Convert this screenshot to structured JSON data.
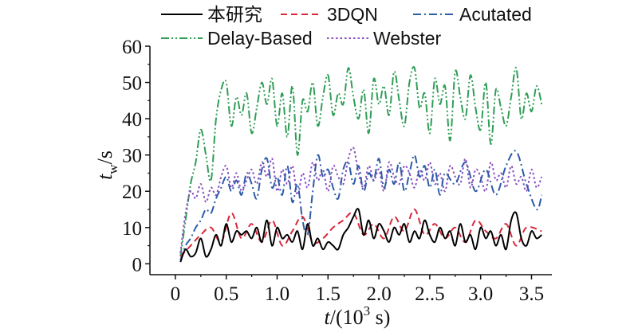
{
  "chart_data": {
    "type": "line",
    "xlabel": {
      "prefix": "t",
      "rest": "/(10",
      "sup": "3",
      "tail": " s)"
    },
    "ylabel": {
      "main": "t",
      "sub": "w",
      "rest": "/s"
    },
    "xlim": [
      -0.25,
      3.7
    ],
    "ylim": [
      -3,
      60
    ],
    "xticks": [
      0,
      0.5,
      1.0,
      1.5,
      2.0,
      2.5,
      3.0,
      3.5
    ],
    "xtick_labels": [
      "0",
      "0.5",
      "1.0",
      "1.5",
      "2.0",
      "2..5",
      "3.0",
      "3.5"
    ],
    "yticks": [
      0,
      10,
      20,
      30,
      40,
      50,
      60
    ],
    "ytick_labels": [
      "0",
      "10",
      "20",
      "30",
      "40",
      "50",
      "60"
    ],
    "legend_placement": "top",
    "series": [
      {
        "name": "本研究",
        "color": "#000000",
        "dash": "solid",
        "x": [
          0.05,
          0.1,
          0.15,
          0.2,
          0.25,
          0.3,
          0.35,
          0.4,
          0.45,
          0.5,
          0.55,
          0.6,
          0.65,
          0.7,
          0.75,
          0.8,
          0.85,
          0.9,
          0.95,
          1.0,
          1.05,
          1.1,
          1.15,
          1.2,
          1.25,
          1.3,
          1.35,
          1.4,
          1.45,
          1.5,
          1.55,
          1.6,
          1.65,
          1.7,
          1.75,
          1.8,
          1.85,
          1.9,
          1.95,
          2.0,
          2.05,
          2.1,
          2.15,
          2.2,
          2.25,
          2.3,
          2.35,
          2.4,
          2.45,
          2.5,
          2.55,
          2.6,
          2.65,
          2.7,
          2.75,
          2.8,
          2.85,
          2.9,
          2.95,
          3.0,
          3.05,
          3.1,
          3.15,
          3.2,
          3.25,
          3.3,
          3.35,
          3.4,
          3.45,
          3.5,
          3.55,
          3.6
        ],
        "y": [
          0.5,
          4,
          2,
          3,
          7,
          2,
          4,
          8,
          5,
          11,
          6,
          9,
          8,
          9,
          7,
          10,
          6,
          12,
          5,
          10,
          7,
          8,
          6,
          9,
          4,
          11,
          5,
          7,
          4,
          6,
          5,
          4,
          8,
          10,
          13,
          15,
          8,
          12,
          7,
          11,
          9,
          6,
          10,
          8,
          11,
          6,
          9,
          7,
          12,
          8,
          6,
          10,
          7,
          9,
          5,
          11,
          6,
          8,
          4,
          10,
          7,
          9,
          5,
          8,
          4,
          12,
          14,
          7,
          5,
          9,
          7,
          8
        ]
      },
      {
        "name": "3DQN",
        "color": "#d8283c",
        "dash": "dashed",
        "x": [
          0.05,
          0.15,
          0.25,
          0.35,
          0.45,
          0.55,
          0.65,
          0.75,
          0.85,
          0.95,
          1.05,
          1.15,
          1.25,
          1.35,
          1.45,
          1.55,
          1.65,
          1.75,
          1.85,
          1.95,
          2.05,
          2.15,
          2.25,
          2.35,
          2.45,
          2.55,
          2.65,
          2.75,
          2.85,
          2.95,
          3.05,
          3.15,
          3.25,
          3.35,
          3.45,
          3.6
        ],
        "y": [
          2,
          5,
          8,
          10,
          6,
          14,
          7,
          11,
          6,
          12,
          5,
          9,
          13,
          6,
          7,
          10,
          12,
          14,
          8,
          11,
          7,
          13,
          9,
          15,
          8,
          11,
          7,
          10,
          6,
          12,
          9,
          7,
          11,
          5,
          10,
          9
        ]
      },
      {
        "name": "Acutated",
        "color": "#2c5ba8",
        "dash": "dashdot",
        "x": [
          0.05,
          0.1,
          0.15,
          0.2,
          0.25,
          0.3,
          0.35,
          0.4,
          0.45,
          0.5,
          0.55,
          0.6,
          0.65,
          0.7,
          0.75,
          0.8,
          0.85,
          0.9,
          0.95,
          1.0,
          1.05,
          1.1,
          1.15,
          1.2,
          1.25,
          1.3,
          1.35,
          1.4,
          1.45,
          1.5,
          1.55,
          1.6,
          1.65,
          1.7,
          1.75,
          1.8,
          1.85,
          1.9,
          1.95,
          2.0,
          2.05,
          2.1,
          2.15,
          2.2,
          2.25,
          2.3,
          2.35,
          2.4,
          2.45,
          2.5,
          2.55,
          2.6,
          2.65,
          2.75,
          2.85,
          2.95,
          3.05,
          3.15,
          3.25,
          3.35,
          3.45,
          3.55,
          3.6
        ],
        "y": [
          1,
          5,
          7,
          10,
          12,
          15,
          14,
          18,
          21,
          24,
          20,
          23,
          19,
          25,
          22,
          18,
          26,
          29,
          21,
          24,
          19,
          27,
          17,
          22,
          12,
          8,
          20,
          30,
          24,
          26,
          21,
          18,
          26,
          28,
          22,
          27,
          20,
          25,
          23,
          29,
          21,
          26,
          22,
          28,
          20,
          25,
          30,
          24,
          27,
          21,
          26,
          19,
          25,
          22,
          28,
          20,
          26,
          19,
          27,
          31,
          22,
          15,
          19
        ]
      },
      {
        "name": "Delay-Based",
        "color": "#2f9e56",
        "dash": "dashdotdot",
        "x": [
          0.05,
          0.1,
          0.15,
          0.2,
          0.25,
          0.3,
          0.35,
          0.4,
          0.45,
          0.5,
          0.55,
          0.6,
          0.65,
          0.7,
          0.75,
          0.8,
          0.85,
          0.9,
          0.95,
          1.0,
          1.05,
          1.1,
          1.15,
          1.2,
          1.25,
          1.3,
          1.35,
          1.4,
          1.45,
          1.5,
          1.55,
          1.6,
          1.65,
          1.7,
          1.75,
          1.8,
          1.85,
          1.9,
          1.95,
          2.0,
          2.05,
          2.1,
          2.15,
          2.2,
          2.25,
          2.3,
          2.35,
          2.4,
          2.45,
          2.5,
          2.55,
          2.6,
          2.65,
          2.7,
          2.75,
          2.8,
          2.85,
          2.9,
          2.95,
          3.0,
          3.05,
          3.1,
          3.15,
          3.2,
          3.25,
          3.3,
          3.35,
          3.4,
          3.45,
          3.5,
          3.55,
          3.6
        ],
        "y": [
          2,
          12,
          22,
          28,
          37,
          30,
          23,
          40,
          48,
          50,
          38,
          46,
          41,
          47,
          36,
          43,
          50,
          44,
          51,
          38,
          47,
          35,
          49,
          30,
          45,
          42,
          50,
          38,
          46,
          52,
          41,
          47,
          44,
          54,
          46,
          40,
          48,
          36,
          51,
          44,
          49,
          41,
          53,
          45,
          38,
          50,
          54,
          43,
          47,
          36,
          51,
          44,
          49,
          34,
          53,
          46,
          40,
          52,
          43,
          37,
          50,
          33,
          48,
          43,
          38,
          46,
          54,
          40,
          47,
          42,
          49,
          44
        ]
      },
      {
        "name": "Webster",
        "color": "#8a4fbf",
        "dash": "dotted",
        "x": [
          0.05,
          0.1,
          0.15,
          0.2,
          0.25,
          0.3,
          0.35,
          0.4,
          0.45,
          0.5,
          0.55,
          0.6,
          0.65,
          0.7,
          0.75,
          0.8,
          0.85,
          0.9,
          0.95,
          1.0,
          1.05,
          1.1,
          1.15,
          1.2,
          1.25,
          1.3,
          1.35,
          1.4,
          1.45,
          1.5,
          1.55,
          1.6,
          1.65,
          1.7,
          1.75,
          1.8,
          1.85,
          1.9,
          1.95,
          2.0,
          2.05,
          2.1,
          2.15,
          2.2,
          2.25,
          2.3,
          2.35,
          2.4,
          2.45,
          2.5,
          2.55,
          2.6,
          2.65,
          2.7,
          2.75,
          2.8,
          2.85,
          2.9,
          2.95,
          3.0,
          3.05,
          3.1,
          3.15,
          3.2,
          3.25,
          3.3,
          3.35,
          3.4,
          3.45,
          3.5,
          3.55,
          3.6
        ],
        "y": [
          3,
          14,
          20,
          18,
          22,
          17,
          21,
          19,
          24,
          27,
          21,
          25,
          20,
          23,
          26,
          22,
          28,
          24,
          29,
          20,
          26,
          22,
          27,
          19,
          25,
          21,
          28,
          23,
          26,
          20,
          27,
          24,
          22,
          29,
          32,
          25,
          21,
          27,
          23,
          26,
          20,
          28,
          24,
          22,
          27,
          25,
          21,
          26,
          23,
          28,
          22,
          25,
          20,
          27,
          24,
          22,
          29,
          21,
          26,
          24,
          20,
          28,
          23,
          25,
          21,
          27,
          22,
          24,
          20,
          26,
          21,
          24
        ]
      }
    ]
  }
}
